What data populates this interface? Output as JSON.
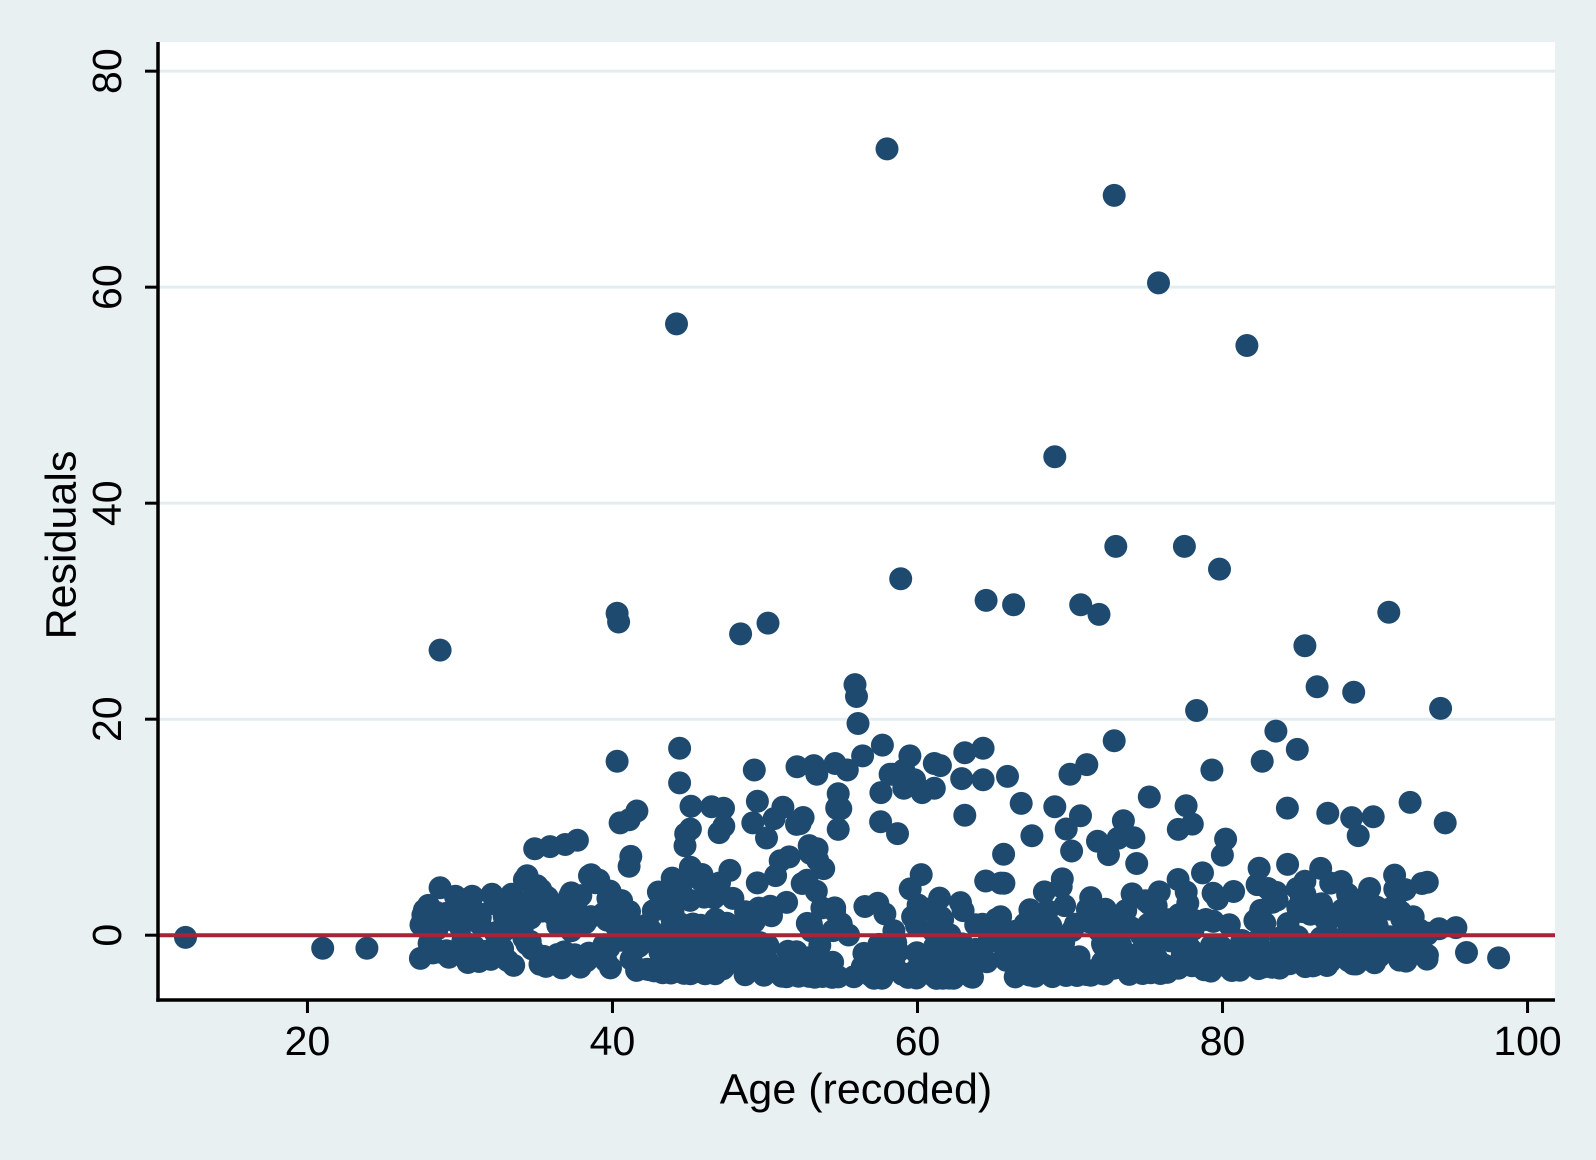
{
  "figure": {
    "background_color": "#e8f0f2",
    "plot_background_color": "#ffffff",
    "grid_color": "#e2edf0",
    "axis_color": "#000000",
    "text_color": "#000000",
    "marker_color": "#1f4a70",
    "zero_line_color": "#a62436"
  },
  "chart_data": {
    "type": "scatter",
    "title": "",
    "xlabel": "Age (recoded)",
    "ylabel": "Residuals",
    "x_ticks": [
      20,
      40,
      60,
      80,
      100
    ],
    "y_ticks": [
      0,
      20,
      40,
      60,
      80
    ],
    "xlim": [
      10.2,
      101.8
    ],
    "ylim": [
      -6.0,
      82.7
    ],
    "grid": "horizontal-gridlines-at-y-ticks",
    "legend": "none",
    "zero_line_y": 0,
    "points": [
      [
        58.0,
        72.8
      ],
      [
        72.9,
        68.5
      ],
      [
        75.8,
        60.4
      ],
      [
        44.2,
        56.6
      ],
      [
        81.6,
        54.6
      ],
      [
        69.0,
        44.3
      ],
      [
        73.0,
        36.0
      ],
      [
        77.5,
        36.0
      ],
      [
        79.8,
        33.9
      ],
      [
        58.9,
        33.0
      ],
      [
        64.5,
        31.0
      ],
      [
        66.3,
        30.6
      ],
      [
        70.7,
        30.6
      ],
      [
        71.9,
        29.7
      ],
      [
        90.9,
        29.9
      ],
      [
        28.7,
        26.4
      ],
      [
        40.3,
        29.8
      ],
      [
        40.4,
        29.0
      ],
      [
        48.4,
        27.9
      ],
      [
        50.2,
        28.9
      ],
      [
        85.4,
        26.8
      ],
      [
        86.2,
        23.0
      ],
      [
        88.6,
        22.5
      ],
      [
        94.3,
        21.0
      ],
      [
        78.3,
        20.8
      ],
      [
        55.9,
        23.2
      ],
      [
        56.0,
        22.1
      ],
      [
        56.1,
        19.6
      ],
      [
        92.3,
        12.3
      ],
      [
        94.6,
        10.4
      ],
      [
        83.5,
        18.9
      ],
      [
        84.9,
        17.2
      ],
      [
        82.6,
        16.1
      ],
      [
        79.3,
        15.3
      ],
      [
        72.9,
        18.0
      ],
      [
        71.1,
        15.8
      ],
      [
        63.1,
        16.9
      ],
      [
        65.9,
        14.7
      ],
      [
        59.8,
        14.4
      ],
      [
        57.7,
        17.6
      ],
      [
        56.4,
        16.6
      ],
      [
        59.5,
        16.6
      ],
      [
        61.5,
        15.7
      ],
      [
        64.3,
        17.3
      ],
      [
        44.4,
        17.3
      ],
      [
        40.3,
        16.1
      ],
      [
        49.3,
        15.3
      ],
      [
        53.2,
        15.7
      ],
      [
        52.1,
        15.6
      ],
      [
        54.6,
        15.9
      ],
      [
        55.4,
        15.3
      ],
      [
        61.1,
        15.9
      ],
      [
        58.4,
        14.9
      ],
      [
        53.4,
        14.9
      ],
      [
        58.2,
        14.9
      ],
      [
        59.1,
        15.3
      ],
      [
        62.9,
        14.5
      ],
      [
        64.3,
        14.4
      ],
      [
        70.0,
        14.9
      ],
      [
        44.4,
        14.1
      ],
      [
        60.3,
        13.2
      ],
      [
        57.6,
        13.2
      ],
      [
        54.8,
        13.1
      ],
      [
        59.1,
        13.6
      ],
      [
        61.1,
        13.6
      ],
      [
        86.9,
        11.3
      ],
      [
        49.5,
        12.4
      ],
      [
        41.6,
        11.5
      ],
      [
        47.3,
        10.1
      ],
      [
        52.5,
        10.9
      ],
      [
        50.1,
        9.0
      ],
      [
        63.1,
        11.1
      ],
      [
        66.8,
        12.2
      ],
      [
        69.0,
        11.9
      ],
      [
        75.2,
        12.8
      ],
      [
        73.5,
        10.6
      ],
      [
        77.1,
        9.8
      ],
      [
        80.2,
        8.9
      ],
      [
        67.5,
        9.2
      ],
      [
        71.8,
        8.7
      ],
      [
        46.5,
        11.9
      ],
      [
        40.5,
        10.4
      ],
      [
        44.8,
        9.4
      ],
      [
        47.0,
        9.5
      ],
      [
        49.2,
        10.4
      ],
      [
        50.6,
        10.8
      ],
      [
        52.9,
        8.3
      ],
      [
        54.8,
        9.8
      ],
      [
        37.7,
        8.8
      ],
      [
        34.9,
        8.0
      ],
      [
        35.9,
        8.2
      ],
      [
        36.9,
        8.4
      ],
      [
        38.6,
        5.6
      ],
      [
        34.4,
        5.5
      ],
      [
        39.1,
        5.1
      ],
      [
        41.2,
        7.3
      ],
      [
        28.7,
        4.4
      ],
      [
        29.7,
        3.6
      ],
      [
        30.8,
        3.6
      ],
      [
        33.0,
        2.2
      ],
      [
        33.4,
        3.8
      ],
      [
        35.3,
        4.2
      ],
      [
        40.6,
        3.2
      ],
      [
        44.5,
        4.6
      ],
      [
        45.8,
        5.1
      ],
      [
        47.7,
        6.0
      ],
      [
        51.0,
        6.9
      ],
      [
        82.4,
        6.2
      ],
      [
        85.4,
        5.0
      ],
      [
        88.2,
        3.8
      ],
      [
        88.4,
        2.0
      ],
      [
        90.1,
        2.6
      ],
      [
        92.5,
        1.7
      ],
      [
        94.2,
        0.6
      ],
      [
        95.3,
        0.7
      ],
      [
        96.0,
        -1.6
      ],
      [
        98.1,
        -2.1
      ],
      [
        12.0,
        -0.2
      ],
      [
        21.0,
        -1.2
      ],
      [
        23.9,
        -1.2
      ],
      [
        28.1,
        0.2
      ]
    ],
    "dense_band": {
      "description": "approx 670 additional overlapping residual points hugging the zero line",
      "seed": 99,
      "count": 670,
      "age_min": 27.3,
      "age_max": 93.5,
      "edge_base": -2.6,
      "edge_dip": 1.7,
      "band_share": 0.66,
      "mid_share": 0.87,
      "band_height": 5.0,
      "mid_offset": 4.2,
      "mid_height": 3.6,
      "high_base": 4.0,
      "high_height": 8.0,
      "left_cap_age": 31.5,
      "left_cap": 0.8,
      "young_cap_age": 38,
      "young_cap": 9,
      "old_taper_age": 90
    }
  }
}
